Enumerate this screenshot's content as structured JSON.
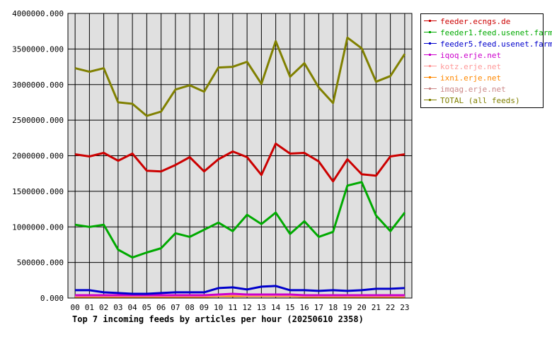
{
  "chart_data": {
    "type": "line",
    "title": "Top 7 incoming feeds by articles per hour (20250610 2358)",
    "xlabel": "",
    "ylabel": "",
    "categories": [
      "00",
      "01",
      "02",
      "03",
      "04",
      "05",
      "06",
      "07",
      "08",
      "09",
      "10",
      "11",
      "12",
      "13",
      "14",
      "15",
      "16",
      "17",
      "18",
      "19",
      "20",
      "21",
      "22",
      "23"
    ],
    "ylim": [
      0,
      4000000
    ],
    "yticks": [
      "0.000",
      "500000.000",
      "1000000.000",
      "1500000.000",
      "2000000.000",
      "2500000.000",
      "3000000.000",
      "3500000.000",
      "4000000.000"
    ],
    "ytick_values": [
      0,
      500000,
      1000000,
      1500000,
      2000000,
      2500000,
      3000000,
      3500000,
      4000000
    ],
    "grid": true,
    "legend_position": "right",
    "series": [
      {
        "name": "feeder.ecngs.de",
        "color": "#cc0000",
        "values": [
          2020000,
          1990000,
          2040000,
          1930000,
          2030000,
          1790000,
          1780000,
          1870000,
          1980000,
          1780000,
          1950000,
          2060000,
          1980000,
          1730000,
          2170000,
          2030000,
          2040000,
          1920000,
          1640000,
          1950000,
          1740000,
          1720000,
          1990000,
          2020000
        ]
      },
      {
        "name": "feeder1.feed.usenet.farm",
        "color": "#00aa00",
        "values": [
          1030000,
          1000000,
          1030000,
          680000,
          570000,
          640000,
          700000,
          910000,
          860000,
          960000,
          1060000,
          940000,
          1170000,
          1040000,
          1200000,
          900000,
          1080000,
          860000,
          930000,
          1580000,
          1630000,
          1160000,
          940000,
          1200000
        ]
      },
      {
        "name": "feeder5.feed.usenet.farm",
        "color": "#0000cc",
        "values": [
          110000,
          110000,
          80000,
          70000,
          60000,
          60000,
          70000,
          80000,
          80000,
          80000,
          140000,
          150000,
          120000,
          160000,
          170000,
          110000,
          110000,
          100000,
          110000,
          100000,
          110000,
          130000,
          130000,
          140000
        ]
      },
      {
        "name": "iqoq.erje.net",
        "color": "#cc00cc",
        "values": [
          40000,
          40000,
          40000,
          40000,
          40000,
          40000,
          40000,
          40000,
          40000,
          40000,
          50000,
          60000,
          50000,
          50000,
          50000,
          50000,
          40000,
          40000,
          40000,
          40000,
          40000,
          40000,
          40000,
          40000
        ]
      },
      {
        "name": "kotz.erje.net",
        "color": "#ff9999",
        "values": [
          30000,
          30000,
          30000,
          30000,
          30000,
          30000,
          30000,
          30000,
          30000,
          30000,
          40000,
          50000,
          40000,
          40000,
          40000,
          40000,
          30000,
          30000,
          30000,
          30000,
          30000,
          30000,
          30000,
          30000
        ]
      },
      {
        "name": "ixni.erje.net",
        "color": "#ff8800",
        "values": [
          20000,
          20000,
          20000,
          20000,
          20000,
          20000,
          20000,
          20000,
          20000,
          20000,
          30000,
          30000,
          30000,
          30000,
          30000,
          30000,
          20000,
          20000,
          20000,
          20000,
          20000,
          20000,
          20000,
          20000
        ]
      },
      {
        "name": "imqag.erje.net",
        "color": "#cc8888",
        "values": [
          20000,
          20000,
          20000,
          20000,
          20000,
          20000,
          20000,
          20000,
          20000,
          20000,
          30000,
          30000,
          30000,
          30000,
          30000,
          30000,
          20000,
          20000,
          20000,
          20000,
          20000,
          20000,
          20000,
          20000
        ]
      },
      {
        "name": "TOTAL (all feeds)",
        "color": "#808000",
        "values": [
          3230000,
          3180000,
          3230000,
          2750000,
          2730000,
          2560000,
          2620000,
          2930000,
          2990000,
          2900000,
          3240000,
          3250000,
          3320000,
          3010000,
          3610000,
          3110000,
          3300000,
          2960000,
          2740000,
          3660000,
          3510000,
          3040000,
          3120000,
          3430000
        ]
      }
    ]
  }
}
